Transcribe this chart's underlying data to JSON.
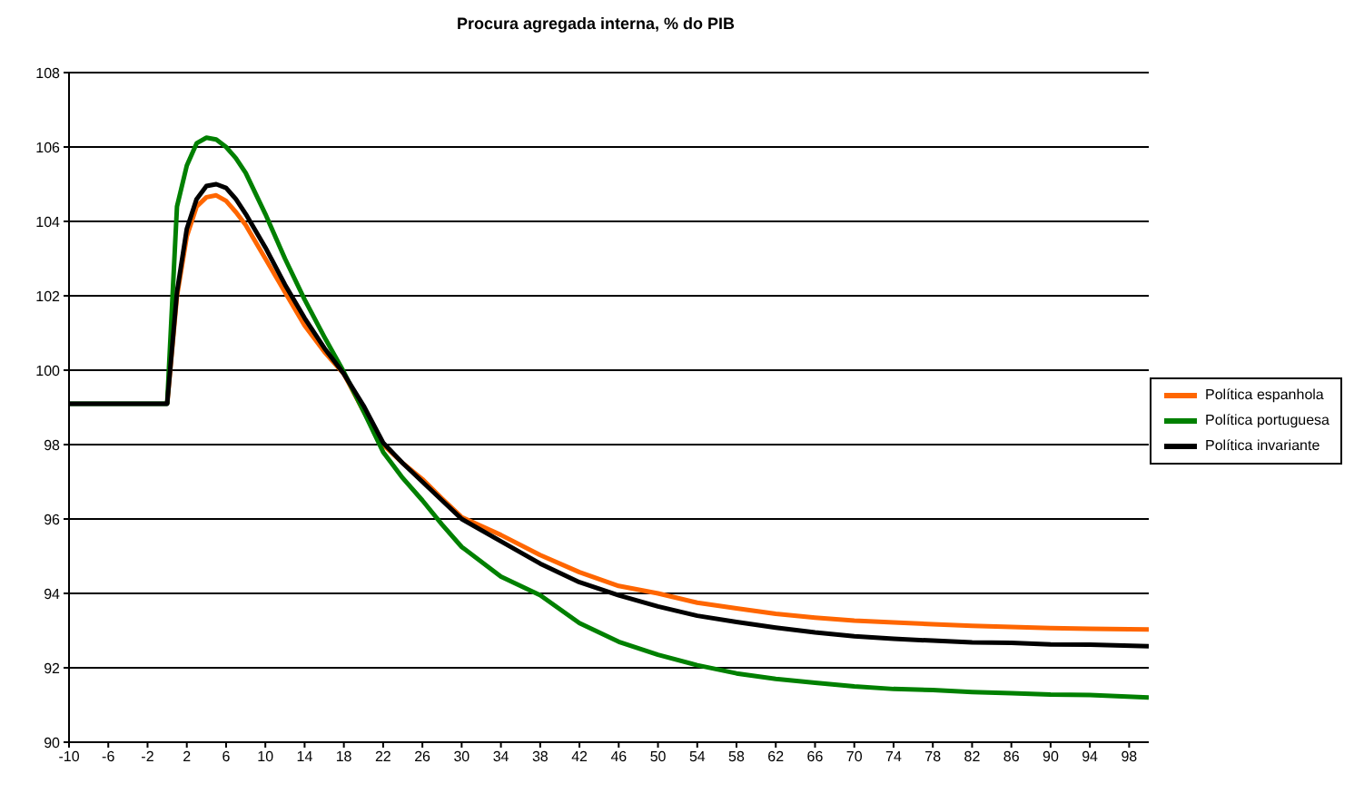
{
  "chart_data": {
    "type": "line",
    "title": "Procura agregada interna, % do PIB",
    "x": [
      -10,
      -1,
      0,
      1,
      2,
      3,
      4,
      5,
      6,
      7,
      8,
      10,
      12,
      14,
      16,
      18,
      20,
      22,
      24,
      26,
      28,
      30,
      34,
      38,
      42,
      46,
      50,
      54,
      58,
      62,
      66,
      70,
      74,
      78,
      82,
      86,
      90,
      94,
      100
    ],
    "series": [
      {
        "name": "Política espanhola",
        "color": "#ff6600",
        "values": [
          null,
          null,
          99.1,
          102.0,
          103.6,
          104.4,
          104.65,
          104.7,
          104.55,
          104.25,
          103.9,
          103.0,
          102.1,
          101.2,
          100.5,
          99.9,
          98.9,
          98.0,
          97.5,
          97.07,
          96.55,
          96.05,
          95.57,
          95.03,
          94.57,
          94.2,
          94.0,
          93.75,
          93.6,
          93.45,
          93.35,
          93.27,
          93.22,
          93.17,
          93.13,
          93.1,
          93.07,
          93.05,
          93.03
        ]
      },
      {
        "name": "Política portuguesa",
        "color": "#008000",
        "values": [
          99.1,
          99.1,
          99.1,
          104.4,
          105.5,
          106.1,
          106.25,
          106.2,
          106.0,
          105.7,
          105.3,
          104.2,
          103.0,
          101.9,
          100.9,
          99.95,
          98.9,
          97.8,
          97.1,
          96.5,
          95.85,
          95.25,
          94.45,
          93.95,
          93.2,
          92.7,
          92.35,
          92.07,
          91.85,
          91.7,
          91.6,
          91.5,
          91.43,
          91.4,
          91.35,
          91.32,
          91.28,
          91.27,
          91.2
        ]
      },
      {
        "name": "Política invariante",
        "color": "#000000",
        "values": [
          99.1,
          99.1,
          99.1,
          102.1,
          103.8,
          104.6,
          104.95,
          105.0,
          104.9,
          104.6,
          104.2,
          103.3,
          102.3,
          101.4,
          100.6,
          99.9,
          99.05,
          98.05,
          97.5,
          97.0,
          96.5,
          96.0,
          95.4,
          94.8,
          94.3,
          93.95,
          93.65,
          93.4,
          93.23,
          93.08,
          92.95,
          92.85,
          92.78,
          92.73,
          92.68,
          92.67,
          92.63,
          92.62,
          92.58
        ]
      }
    ],
    "xlim": [
      -10,
      100
    ],
    "xticks": [
      -10,
      -6,
      -2,
      2,
      6,
      10,
      14,
      18,
      22,
      26,
      30,
      34,
      38,
      42,
      46,
      50,
      54,
      58,
      62,
      66,
      70,
      74,
      78,
      82,
      86,
      90,
      94,
      98
    ],
    "ylim": [
      90,
      108
    ],
    "yticks": [
      90,
      92,
      94,
      96,
      98,
      100,
      102,
      104,
      106,
      108
    ],
    "grid": "y",
    "legend": "right",
    "marker": "none",
    "line_style": "solid"
  }
}
